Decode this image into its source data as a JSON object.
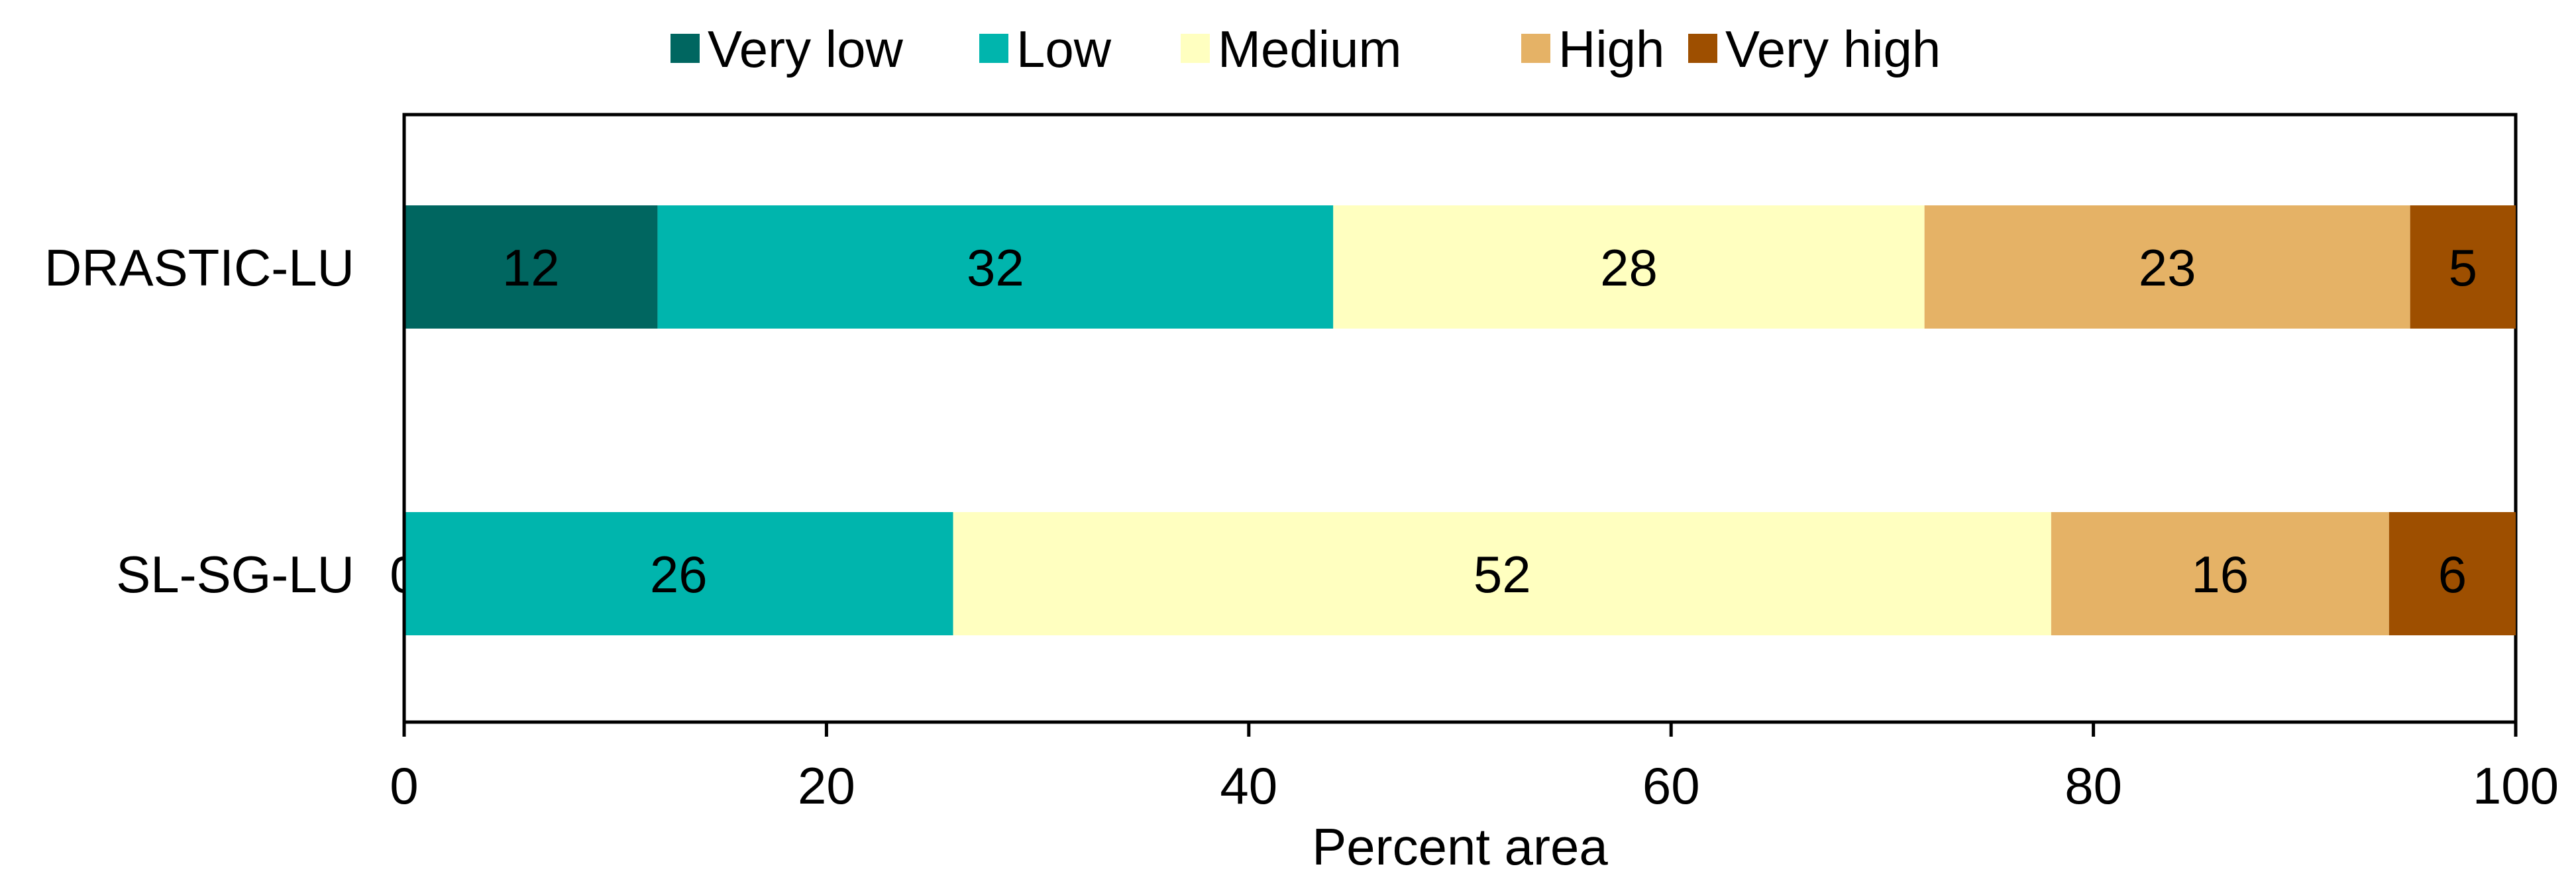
{
  "chart_data": {
    "type": "bar",
    "orientation": "horizontal",
    "stacked": true,
    "categories": [
      "DRASTIC-LU",
      "SL-SG-LU"
    ],
    "series": [
      {
        "name": "Very low",
        "values": [
          12,
          0
        ],
        "color": "#006660"
      },
      {
        "name": "Low",
        "values": [
          32,
          26
        ],
        "color": "#00B5AD"
      },
      {
        "name": "Medium",
        "values": [
          28,
          52
        ],
        "color": "#FFFFC0"
      },
      {
        "name": "High",
        "values": [
          23,
          16
        ],
        "color": "#E5B266"
      },
      {
        "name": "Very high",
        "values": [
          5,
          6
        ],
        "color": "#9E4F00"
      }
    ],
    "xlabel": "Percent area",
    "ylabel": "",
    "xlim": [
      0,
      100
    ],
    "xticks": [
      0,
      20,
      40,
      60,
      80,
      100
    ],
    "legend_position": "top",
    "grid": false
  }
}
